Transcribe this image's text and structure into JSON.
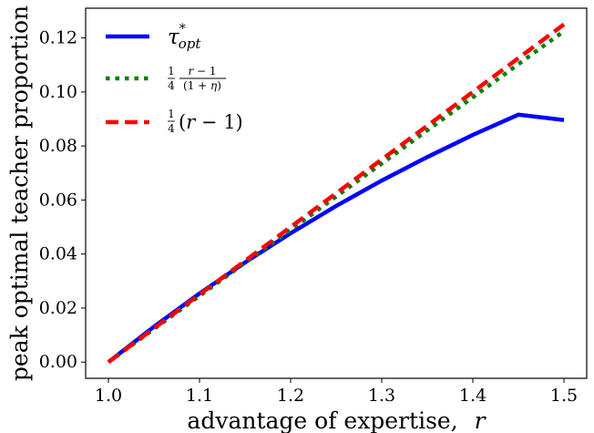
{
  "chart_data": {
    "type": "line",
    "xlabel": "advantage of expertise,",
    "xlabel_var": "r",
    "ylabel": "peak optimal teacher proportion",
    "xlim": [
      0.975,
      1.525
    ],
    "ylim": [
      -0.006,
      0.131
    ],
    "xticks": [
      1.0,
      1.1,
      1.2,
      1.3,
      1.4,
      1.5
    ],
    "xtick_labels": [
      "1.0",
      "1.1",
      "1.2",
      "1.3",
      "1.4",
      "1.5"
    ],
    "yticks": [
      0.0,
      0.02,
      0.04,
      0.06,
      0.08,
      0.1,
      0.12
    ],
    "ytick_labels": [
      "0.00",
      "0.02",
      "0.04",
      "0.06",
      "0.08",
      "0.10",
      "0.12"
    ],
    "grid": false,
    "legend_position": "top-left",
    "series": [
      {
        "name": "τ*opt",
        "style": "solid",
        "color": "#0000ff",
        "x": [
          1.0,
          1.05,
          1.1,
          1.15,
          1.2,
          1.25,
          1.3,
          1.35,
          1.4,
          1.45,
          1.5
        ],
        "y": [
          0.0,
          0.0131,
          0.0254,
          0.0369,
          0.0477,
          0.0578,
          0.0672,
          0.0759,
          0.0841,
          0.0916,
          0.0896
        ]
      },
      {
        "name": "1/4 (r−1)/(1+η)",
        "style": "dotted",
        "color": "#008000",
        "x": [
          1.0,
          1.05,
          1.1,
          1.15,
          1.2,
          1.25,
          1.3,
          1.35,
          1.4,
          1.45,
          1.5
        ],
        "y": [
          0.0,
          0.0123,
          0.0245,
          0.0368,
          0.049,
          0.0613,
          0.0735,
          0.0858,
          0.098,
          0.1103,
          0.1225
        ]
      },
      {
        "name": "1/4 (r−1)",
        "style": "dashed",
        "color": "#ff0000",
        "x": [
          1.0,
          1.05,
          1.1,
          1.15,
          1.2,
          1.25,
          1.3,
          1.35,
          1.4,
          1.45,
          1.5
        ],
        "y": [
          0.0,
          0.0125,
          0.025,
          0.0375,
          0.05,
          0.0625,
          0.075,
          0.0875,
          0.1,
          0.1125,
          0.125
        ]
      }
    ]
  }
}
